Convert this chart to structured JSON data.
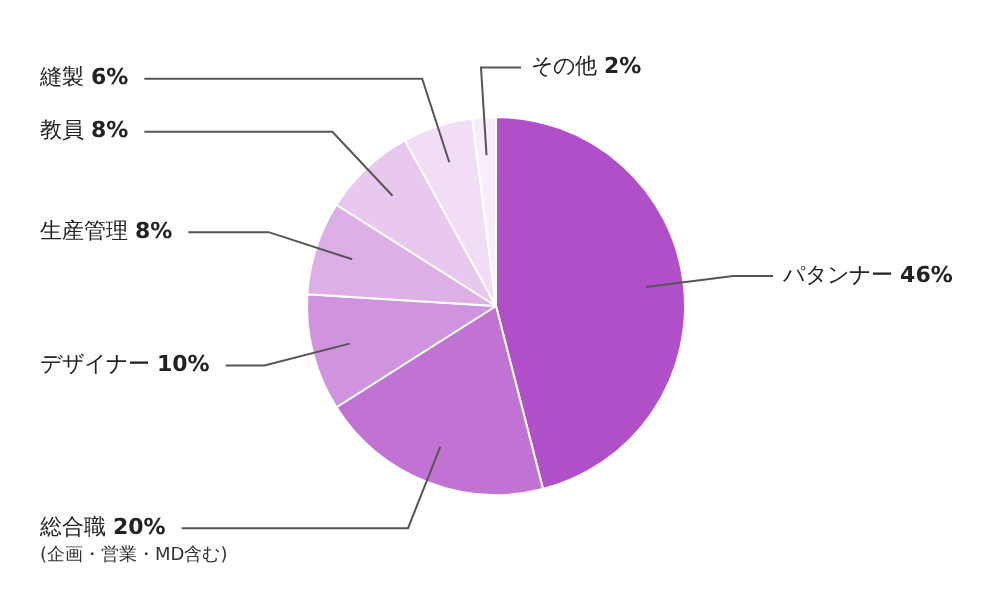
{
  "chart_data": {
    "type": "pie",
    "categories": [
      "パタンナー",
      "総合職",
      "デザイナー",
      "生産管理",
      "教員",
      "縫製",
      "その他"
    ],
    "values": [
      46,
      20,
      10,
      8,
      8,
      6,
      2
    ],
    "value_labels": [
      "46%",
      "20%",
      "10%",
      "8%",
      "8%",
      "6%",
      "2%"
    ],
    "colors": [
      "#b04fc8",
      "#c173d4",
      "#d093de",
      "#ddafe6",
      "#e8c8ee",
      "#f1ddf5",
      "#f8eefa"
    ],
    "annotations": [
      "(企画・営業・MD含む)"
    ],
    "legend": false
  }
}
